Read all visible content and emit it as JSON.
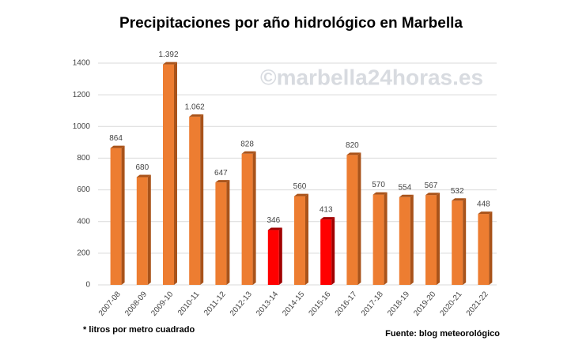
{
  "chart_data": {
    "type": "bar",
    "title": "Precipitaciones por año hidrológico en Marbella",
    "watermark": "©marbella24horas.es",
    "note": "* litros por metro cuadrado",
    "source": "Fuente: blog meteorológico",
    "categories": [
      "2007-08",
      "2008-09",
      "2009-10",
      "2010-11",
      "2011-12",
      "2012-13",
      "2013-14",
      "2014-15",
      "2015-16",
      "2016-17",
      "2017-18",
      "2018-19",
      "2019-20",
      "2020-21",
      "2021-22"
    ],
    "values": [
      864,
      680,
      1392,
      1062,
      647,
      828,
      346,
      560,
      413,
      820,
      570,
      554,
      567,
      532,
      448
    ],
    "value_labels": [
      "864",
      "680",
      "1.392",
      "1.062",
      "647",
      "828",
      "346",
      "560",
      "413",
      "820",
      "570",
      "554",
      "567",
      "532",
      "448"
    ],
    "colors": [
      "#ed7d31",
      "#ed7d31",
      "#ed7d31",
      "#ed7d31",
      "#ed7d31",
      "#ed7d31",
      "#ff0000",
      "#ed7d31",
      "#ff0000",
      "#ed7d31",
      "#ed7d31",
      "#ed7d31",
      "#ed7d31",
      "#ed7d31",
      "#ed7d31"
    ],
    "ylim": [
      0,
      1400
    ],
    "yticks": [
      0,
      200,
      400,
      600,
      800,
      1000,
      1200,
      1400
    ],
    "grid": true
  }
}
